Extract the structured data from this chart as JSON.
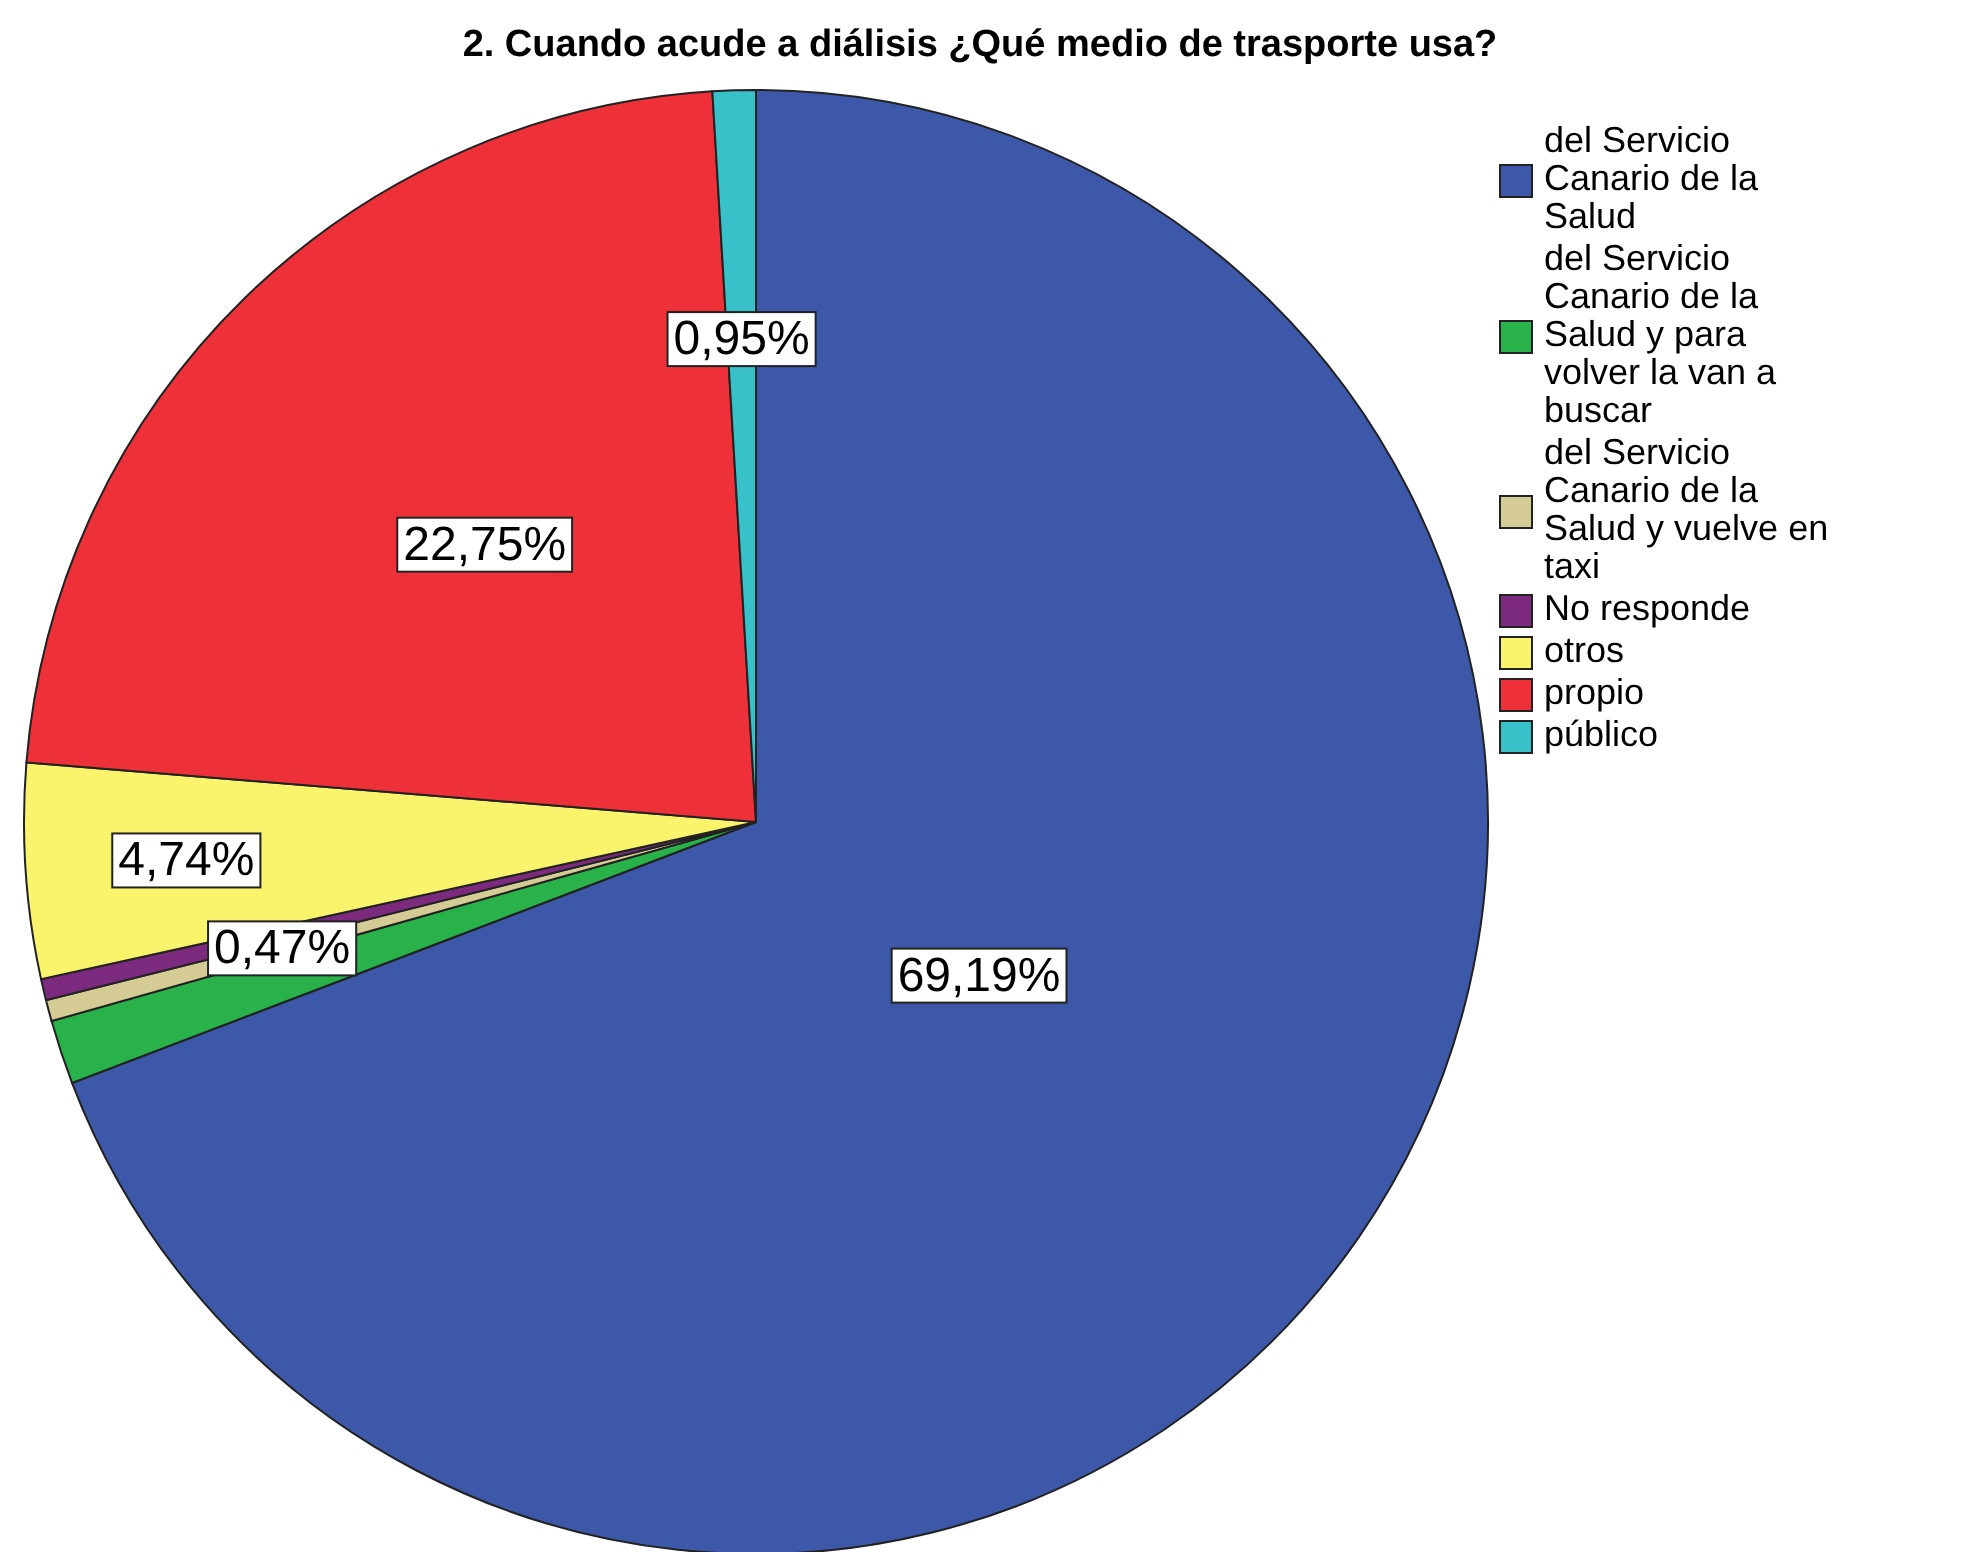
{
  "chart_data": {
    "type": "pie",
    "title": "2. Cuando acude a diálisis ¿Qué medio de trasporte usa?",
    "categories": [
      "del Servicio Canario de la Salud",
      "del Servicio Canario de la Salud y para volver la van a buscar",
      "del Servicio Canario de la Salud y vuelve en taxi",
      "No responde",
      "otros",
      "propio",
      "público"
    ],
    "values": [
      69.19,
      1.42,
      0.47,
      0.47,
      4.74,
      22.75,
      0.95
    ],
    "colors": [
      "#3d58a8",
      "#2ab24a",
      "#d4cc94",
      "#7b2a7e",
      "#f9f46b",
      "#ee3138",
      "#38c1c8"
    ],
    "value_labels": [
      "69,19%",
      null,
      "0,47%",
      null,
      "4,74%",
      "22,75%",
      "0,95%"
    ],
    "legend": "right"
  }
}
